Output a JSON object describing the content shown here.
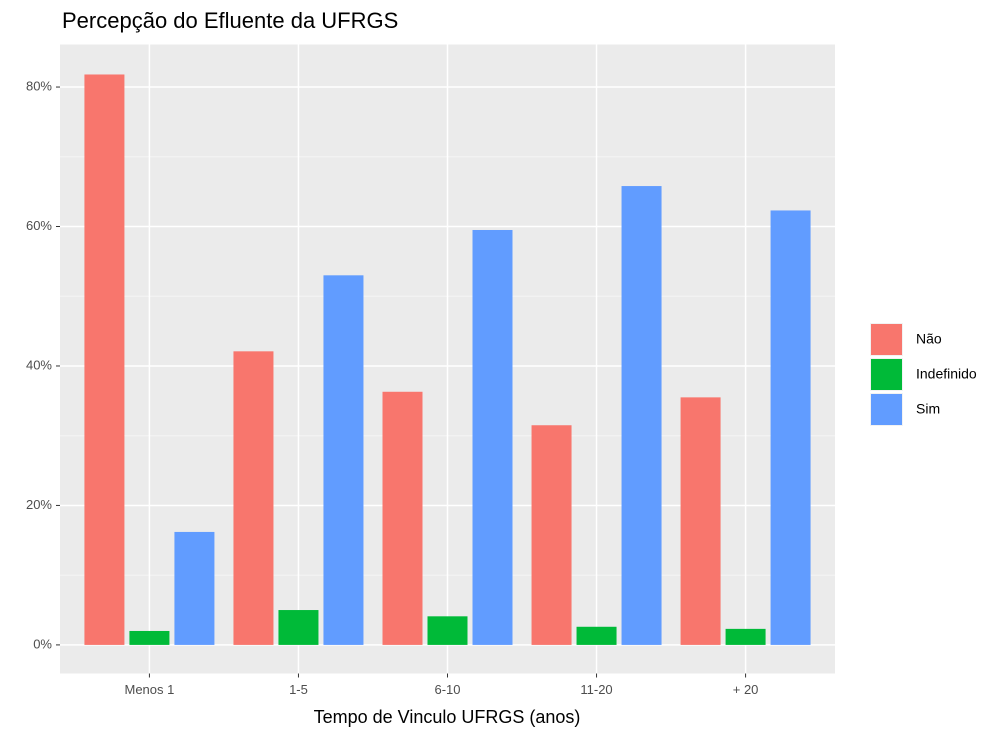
{
  "chart_data": {
    "type": "bar",
    "title": "Percepção do Efluente da UFRGS",
    "x_label": "Tempo de Vinculo UFRGS (anos)",
    "categories": [
      "Menos 1",
      "1-5",
      "6-10",
      "11-20",
      "+ 20"
    ],
    "series": [
      {
        "name": "Não",
        "color": "#f8766d",
        "values": [
          81.8,
          42.1,
          36.3,
          31.5,
          35.5
        ]
      },
      {
        "name": "Indefinido",
        "color": "#00ba38",
        "values": [
          2.0,
          5.0,
          4.1,
          2.6,
          2.3
        ]
      },
      {
        "name": "Sim",
        "color": "#619cff",
        "values": [
          16.2,
          53.0,
          59.5,
          65.8,
          62.3
        ]
      }
    ],
    "ylim": [
      -4.1,
      86.1
    ],
    "yticks": [
      {
        "value": 0,
        "label": "0%"
      },
      {
        "value": 20,
        "label": "20%"
      },
      {
        "value": 40,
        "label": "40%"
      },
      {
        "value": 60,
        "label": "60%"
      },
      {
        "value": 80,
        "label": "80%"
      }
    ],
    "grid": true,
    "legend": "right"
  }
}
